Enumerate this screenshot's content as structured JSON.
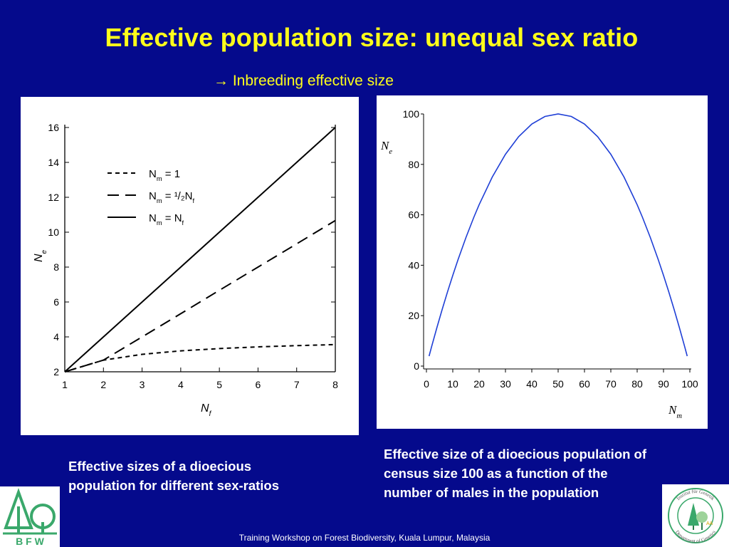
{
  "slide": {
    "title": "Effective population size: unequal sex ratio",
    "subtitle": "→ Inbreeding effective size",
    "caption_left": "Effective sizes of a dioecious\npopulation for different sex-ratios",
    "caption_right": "Effective size of a dioecious population of\ncensus size 100 as a function of the\nnumber of males in the population",
    "footer": "Training Workshop on Forest Biodiversity, Kuala Lumpur, Malaysia",
    "logo_left": {
      "text": "B F W",
      "icon": "bfw-tree-logo",
      "color": "#3aa86b"
    },
    "logo_right": {
      "icon": "department-of-genetics-seal",
      "ring_text_top": "Institut für Genetik",
      "ring_text_bottom": "Department of Genetics"
    }
  },
  "chart_data": [
    {
      "type": "line",
      "xlabel": "N",
      "xlabel_sub": "f",
      "ylabel": "N",
      "ylabel_sub": "e",
      "xlim": [
        1,
        8
      ],
      "ylim": [
        2,
        16
      ],
      "xticks": [
        1,
        2,
        3,
        4,
        5,
        6,
        7,
        8
      ],
      "yticks": [
        2,
        4,
        6,
        8,
        10,
        12,
        14,
        16
      ],
      "legend_position": "top-left",
      "series": [
        {
          "name": "Nm = 1",
          "name_main": "N",
          "name_sub": "m",
          "name_rest": " = 1",
          "style": "short-dash",
          "x": [
            1,
            2,
            3,
            4,
            5,
            6,
            7,
            8
          ],
          "y": [
            2,
            2.67,
            3.0,
            3.2,
            3.33,
            3.43,
            3.5,
            3.56
          ]
        },
        {
          "name": "Nm = 1/2Nf",
          "name_main": "N",
          "name_sub": "m",
          "name_rest": " = ¹/₂N",
          "name_sub2": "f",
          "style": "long-dash",
          "x": [
            1,
            2,
            3,
            4,
            5,
            6,
            7,
            8
          ],
          "y": [
            2,
            2.67,
            4.0,
            5.33,
            6.67,
            8.0,
            9.33,
            10.67
          ]
        },
        {
          "name": "Nm = Nf",
          "name_main": "N",
          "name_sub": "m",
          "name_rest": " = N",
          "name_sub2": "f",
          "style": "solid",
          "x": [
            1,
            2,
            3,
            4,
            5,
            6,
            7,
            8
          ],
          "y": [
            2,
            4,
            6,
            8,
            10,
            12,
            14,
            16
          ]
        }
      ]
    },
    {
      "type": "line",
      "xlabel": "N",
      "xlabel_sub": "m",
      "ylabel": "N",
      "ylabel_sub": "e",
      "xlim": [
        0,
        100
      ],
      "ylim": [
        0,
        100
      ],
      "xticks": [
        0,
        10,
        20,
        30,
        40,
        50,
        60,
        70,
        80,
        90,
        100
      ],
      "yticks": [
        0,
        20,
        40,
        60,
        80,
        100
      ],
      "color": "#1f3fd6",
      "series": [
        {
          "formula": "Ne = 4 Nm (100 - Nm) / 100",
          "x": [
            1,
            2,
            4,
            6,
            8,
            10,
            12,
            15,
            18,
            20,
            25,
            30,
            35,
            40,
            45,
            50,
            55,
            60,
            65,
            70,
            75,
            80,
            82,
            85,
            88,
            90,
            92,
            94,
            96,
            98,
            99
          ],
          "y": [
            3.96,
            7.84,
            15.36,
            22.56,
            29.44,
            36.0,
            42.24,
            51.0,
            59.04,
            64.0,
            75.0,
            84.0,
            91.0,
            96.0,
            99.0,
            100.0,
            99.0,
            96.0,
            91.0,
            84.0,
            75.0,
            64.0,
            59.04,
            51.0,
            42.24,
            36.0,
            29.44,
            22.56,
            15.36,
            7.84,
            3.96
          ]
        }
      ]
    }
  ]
}
